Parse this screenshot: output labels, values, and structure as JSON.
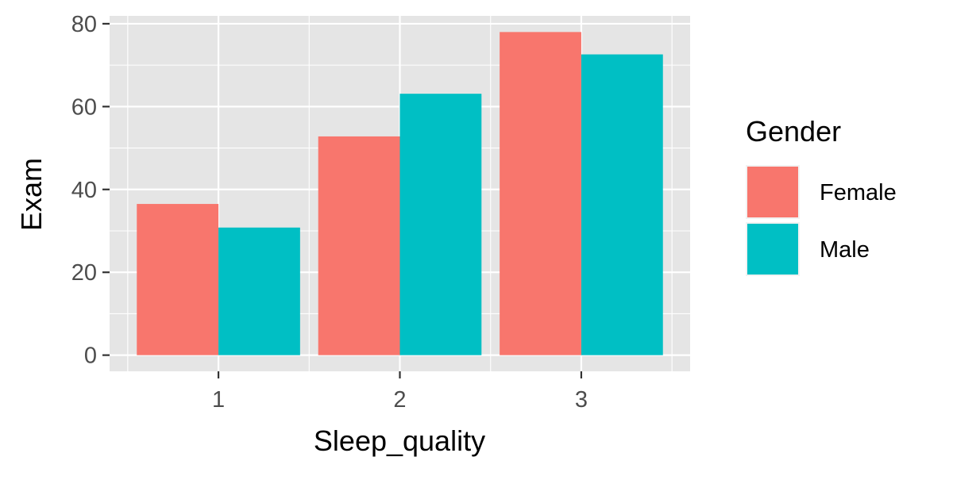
{
  "chart_data": {
    "type": "bar",
    "categories": [
      "1",
      "2",
      "3"
    ],
    "series": [
      {
        "name": "Female",
        "color": "#F8766D",
        "values": [
          36.5,
          52.8,
          78.0
        ]
      },
      {
        "name": "Male",
        "color": "#00BFC4",
        "values": [
          30.8,
          63.1,
          72.6
        ]
      }
    ],
    "title": "",
    "xlabel": "Sleep_quality",
    "ylabel": "Exam",
    "ylim": [
      -3.9,
      81.9
    ],
    "yticks": [
      0,
      20,
      40,
      60,
      80
    ],
    "grid": true,
    "legend": {
      "title": "Gender",
      "position": "right"
    }
  },
  "colors": {
    "panel_background": "#E5E5E5",
    "grid": "#FFFFFF",
    "female": "#F8766D",
    "male": "#00BFC4"
  }
}
